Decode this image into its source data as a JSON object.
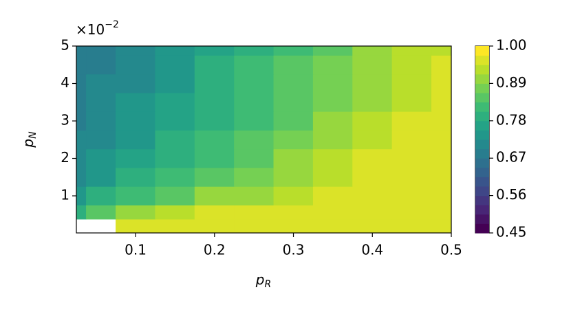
{
  "chart_data": {
    "type": "contour",
    "x_label": {
      "base": "p",
      "sub": "R"
    },
    "y_label": {
      "base": "p",
      "sub": "N"
    },
    "y_offset_label": {
      "base": "×10",
      "exponent": "−2"
    },
    "xlim": [
      0.025,
      0.5
    ],
    "ylim": [
      0.0001,
      0.05
    ],
    "xticks": [
      0.1,
      0.2,
      0.3,
      0.4,
      0.5
    ],
    "yticks": [
      {
        "value": 0.01,
        "label": "1"
      },
      {
        "value": 0.02,
        "label": "2"
      },
      {
        "value": 0.03,
        "label": "3"
      },
      {
        "value": 0.04,
        "label": "4"
      },
      {
        "value": 0.05,
        "label": "5"
      }
    ],
    "colormap": "viridis",
    "levels": [
      0.45,
      0.4775,
      0.505,
      0.5325,
      0.56,
      0.5875,
      0.615,
      0.6425,
      0.67,
      0.6975,
      0.725,
      0.7525,
      0.78,
      0.8075,
      0.835,
      0.8625,
      0.89,
      0.9175,
      0.945,
      0.9725,
      1.0
    ],
    "colorbar_ticks": [
      0.45,
      0.56,
      0.67,
      0.78,
      0.89,
      {
        "value": 1.0,
        "label": "1.00"
      }
    ],
    "x": [
      0.025,
      0.05,
      0.1,
      0.15,
      0.2,
      0.25,
      0.3,
      0.35,
      0.4,
      0.45,
      0.5
    ],
    "y": [
      0.0025,
      0.005,
      0.01,
      0.015,
      0.02,
      0.025,
      0.03,
      0.035,
      0.04,
      0.045,
      0.05
    ],
    "z": [
      [
        null,
        null,
        0.96,
        0.97,
        0.97,
        0.97,
        0.97,
        0.97,
        0.97,
        0.97,
        0.97
      ],
      [
        0.78,
        0.84,
        0.9,
        0.93,
        0.95,
        0.96,
        0.97,
        0.97,
        0.97,
        0.97,
        0.97
      ],
      [
        0.74,
        0.78,
        0.83,
        0.86,
        0.89,
        0.91,
        0.94,
        0.96,
        0.97,
        0.97,
        0.97
      ],
      [
        0.72,
        0.75,
        0.79,
        0.82,
        0.85,
        0.88,
        0.91,
        0.94,
        0.96,
        0.97,
        0.97
      ],
      [
        0.71,
        0.73,
        0.77,
        0.8,
        0.83,
        0.86,
        0.89,
        0.92,
        0.95,
        0.97,
        0.97
      ],
      [
        0.7,
        0.72,
        0.75,
        0.78,
        0.81,
        0.84,
        0.87,
        0.9,
        0.93,
        0.96,
        0.97
      ],
      [
        0.69,
        0.71,
        0.74,
        0.77,
        0.8,
        0.83,
        0.86,
        0.89,
        0.92,
        0.95,
        0.97
      ],
      [
        0.69,
        0.7,
        0.73,
        0.76,
        0.79,
        0.82,
        0.85,
        0.88,
        0.91,
        0.94,
        0.96
      ],
      [
        0.68,
        0.7,
        0.72,
        0.75,
        0.78,
        0.81,
        0.85,
        0.88,
        0.9,
        0.93,
        0.95
      ],
      [
        0.68,
        0.69,
        0.72,
        0.75,
        0.78,
        0.81,
        0.84,
        0.87,
        0.9,
        0.92,
        0.95
      ],
      [
        0.68,
        0.69,
        0.71,
        0.74,
        0.77,
        0.8,
        0.83,
        0.86,
        0.89,
        0.92,
        0.94
      ]
    ]
  }
}
